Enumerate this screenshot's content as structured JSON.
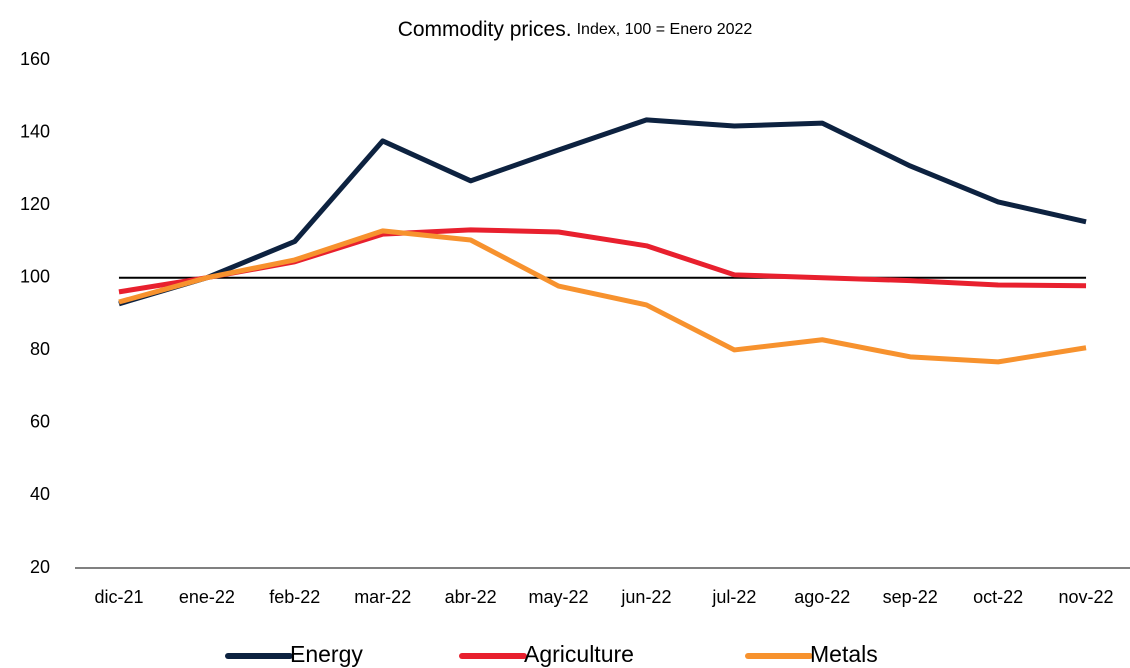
{
  "chart_data": {
    "type": "line",
    "title": "Commodity prices.",
    "subtitle": "Index, 100 = Enero 2022",
    "categories": [
      "dic-21",
      "ene-22",
      "feb-22",
      "mar-22",
      "abr-22",
      "may-22",
      "jun-22",
      "jul-22",
      "ago-22",
      "sep-22",
      "oct-22",
      "nov-22"
    ],
    "series": [
      {
        "name": "Energy",
        "color": "#0d2240",
        "values": [
          92.8,
          100,
          110,
          137.7,
          126.7,
          135.2,
          143.5,
          141.8,
          142.6,
          130.8,
          120.9,
          115.4
        ]
      },
      {
        "name": "Agriculture",
        "color": "#e8202e",
        "values": [
          96.1,
          100,
          104.4,
          112,
          113.2,
          112.6,
          108.8,
          100.8,
          100,
          99.2,
          98,
          97.8
        ]
      },
      {
        "name": "Metals",
        "color": "#f7922e",
        "values": [
          93.3,
          100,
          104.9,
          112.9,
          110.4,
          97.7,
          92.5,
          80.1,
          82.9,
          78.2,
          76.8,
          80.7
        ]
      }
    ],
    "reference_line": 100,
    "ylim": [
      20,
      160
    ],
    "yticks": [
      20,
      40,
      60,
      80,
      100,
      120,
      140,
      160
    ],
    "grid": false,
    "legend": "bottom"
  }
}
